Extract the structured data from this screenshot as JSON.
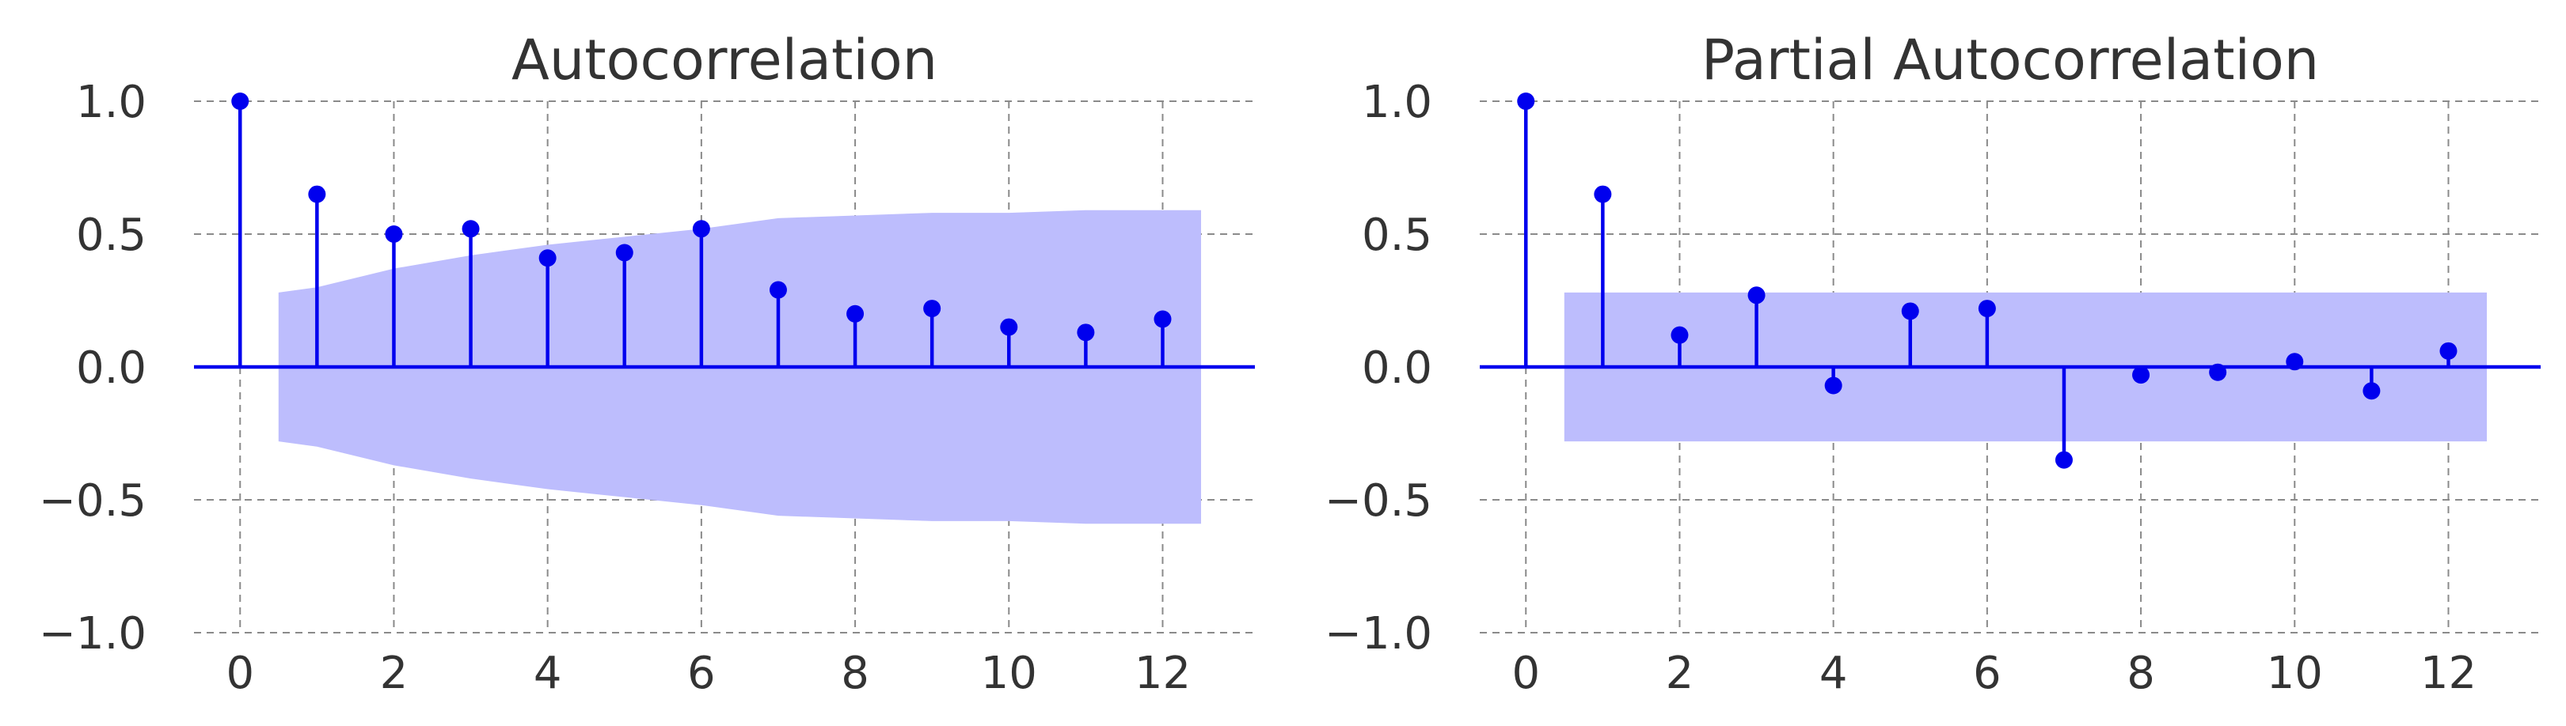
{
  "chart_data": [
    {
      "type": "stem",
      "title": "Autocorrelation",
      "xlabel": "",
      "ylabel": "",
      "x": [
        0,
        1,
        2,
        3,
        4,
        5,
        6,
        7,
        8,
        9,
        10,
        11,
        12
      ],
      "values": [
        1.0,
        0.65,
        0.5,
        0.52,
        0.41,
        0.43,
        0.52,
        0.29,
        0.2,
        0.22,
        0.15,
        0.13,
        0.18
      ],
      "confidence_band": {
        "x": [
          0.5,
          1,
          2,
          3,
          4,
          5,
          6,
          7,
          8,
          9,
          10,
          11,
          12,
          12.5
        ],
        "upper": [
          0.28,
          0.3,
          0.37,
          0.42,
          0.46,
          0.49,
          0.52,
          0.56,
          0.57,
          0.58,
          0.58,
          0.59,
          0.59,
          0.59
        ]
      },
      "xlim": [
        -0.6,
        13.2
      ],
      "ylim": [
        -1.0,
        1.0
      ],
      "xticks": [
        0,
        2,
        4,
        6,
        8,
        10,
        12
      ],
      "xtick_labels": [
        "0",
        "2",
        "4",
        "6",
        "8",
        "10",
        "12"
      ],
      "yticks": [
        -1.0,
        -0.5,
        0.0,
        0.5,
        1.0
      ],
      "ytick_labels": [
        "−1.0",
        "−0.5",
        "0.0",
        "0.5",
        "1.0"
      ],
      "grid": true,
      "colors": {
        "stem": "#0000ee",
        "band": "#bdbdfd",
        "grid": "#8a8a8a"
      }
    },
    {
      "type": "stem",
      "title": "Partial Autocorrelation",
      "xlabel": "",
      "ylabel": "",
      "x": [
        0,
        1,
        2,
        3,
        4,
        5,
        6,
        7,
        8,
        9,
        10,
        11,
        12
      ],
      "values": [
        1.0,
        0.65,
        0.12,
        0.27,
        -0.07,
        0.21,
        0.22,
        -0.35,
        -0.03,
        -0.02,
        0.02,
        -0.09,
        0.06
      ],
      "confidence_band": {
        "x": [
          0.5,
          12.5
        ],
        "upper": [
          0.28,
          0.28
        ]
      },
      "xlim": [
        -0.6,
        13.2
      ],
      "ylim": [
        -1.0,
        1.0
      ],
      "xticks": [
        0,
        2,
        4,
        6,
        8,
        10,
        12
      ],
      "xtick_labels": [
        "0",
        "2",
        "4",
        "6",
        "8",
        "10",
        "12"
      ],
      "yticks": [
        -1.0,
        -0.5,
        0.0,
        0.5,
        1.0
      ],
      "ytick_labels": [
        "−1.0",
        "−0.5",
        "0.0",
        "0.5",
        "1.0"
      ],
      "grid": true,
      "colors": {
        "stem": "#0000ee",
        "band": "#bdbdfd",
        "grid": "#8a8a8a"
      }
    }
  ]
}
